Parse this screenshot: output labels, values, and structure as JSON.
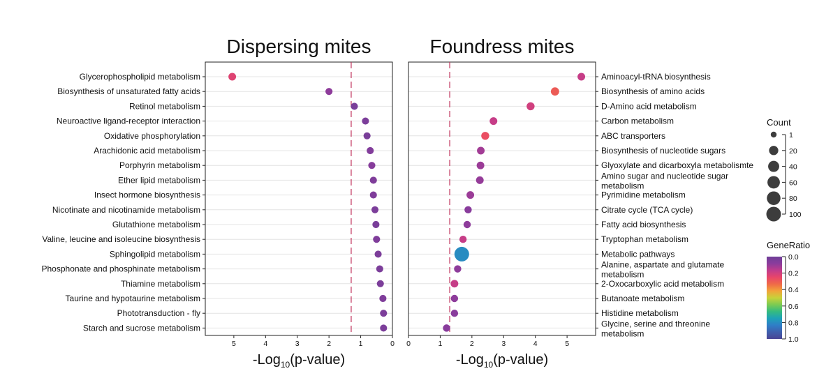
{
  "chart_data": [
    {
      "type": "scatter",
      "title": "Dispersing mites",
      "xlabel": {
        "prefix": "-Log",
        "subscript": "10",
        "suffix": "(p-value)"
      },
      "x_reversed": true,
      "xlim": [
        5.9,
        0
      ],
      "xticks": [
        "5",
        "4",
        "3",
        "2",
        "1",
        "0"
      ],
      "threshold": 1.3,
      "terms": [
        {
          "name": "Glycerophospholipid metabolism",
          "value": 5.05,
          "count": 8,
          "ratio": 0.23
        },
        {
          "name": "Biosynthesis of unsaturated fatty acids",
          "value": 2.0,
          "count": 5,
          "ratio": 0.09
        },
        {
          "name": "Retinol metabolism",
          "value": 1.2,
          "count": 5,
          "ratio": 0.03
        },
        {
          "name": "Neuroactive ligand-receptor interaction",
          "value": 0.85,
          "count": 5,
          "ratio": 0.04
        },
        {
          "name": "Oxidative phosphorylation",
          "value": 0.8,
          "count": 5,
          "ratio": 0.03
        },
        {
          "name": "Arachidonic acid metabolism",
          "value": 0.7,
          "count": 5,
          "ratio": 0.06
        },
        {
          "name": "Porphyrin metabolism",
          "value": 0.65,
          "count": 5,
          "ratio": 0.07
        },
        {
          "name": "Ether lipid metabolism",
          "value": 0.6,
          "count": 5,
          "ratio": 0.05
        },
        {
          "name": "Insect hormone biosynthesis",
          "value": 0.6,
          "count": 5,
          "ratio": 0.05
        },
        {
          "name": "Nicotinate and nicotinamide metabolism",
          "value": 0.55,
          "count": 5,
          "ratio": 0.04
        },
        {
          "name": "Glutathione metabolism",
          "value": 0.52,
          "count": 5,
          "ratio": 0.03
        },
        {
          "name": "Valine, leucine and isoleucine biosynthesis",
          "value": 0.5,
          "count": 5,
          "ratio": 0.05
        },
        {
          "name": "Sphingolipid metabolism",
          "value": 0.45,
          "count": 5,
          "ratio": 0.04
        },
        {
          "name": "Phosphonate and phosphinate metabolism",
          "value": 0.4,
          "count": 5,
          "ratio": 0.04
        },
        {
          "name": "Thiamine metabolism",
          "value": 0.38,
          "count": 5,
          "ratio": 0.04
        },
        {
          "name": "Taurine and hypotaurine metabolism",
          "value": 0.3,
          "count": 5,
          "ratio": 0.05
        },
        {
          "name": "Phototransduction - fly",
          "value": 0.28,
          "count": 5,
          "ratio": 0.04
        },
        {
          "name": "Starch and sucrose metabolism",
          "value": 0.28,
          "count": 5,
          "ratio": 0.04
        }
      ]
    },
    {
      "type": "scatter",
      "title": "Foundress mites",
      "xlabel": {
        "prefix": "-Log",
        "subscript": "10",
        "suffix": "(p-value)"
      },
      "x_reversed": false,
      "xlim": [
        0,
        5.9
      ],
      "xticks": [
        "0",
        "1",
        "2",
        "3",
        "4",
        "5"
      ],
      "threshold": 1.3,
      "terms": [
        {
          "name": "Aminoacyl-tRNA biosynthesis",
          "value": 5.45,
          "count": 8,
          "ratio": 0.18
        },
        {
          "name": "Biosynthesis of amino acids",
          "value": 4.62,
          "count": 12,
          "ratio": 0.3
        },
        {
          "name": "D-Amino acid metabolism",
          "value": 3.85,
          "count": 10,
          "ratio": 0.2
        },
        {
          "name": "Carbon metabolism",
          "value": 2.68,
          "count": 8,
          "ratio": 0.18
        },
        {
          "name": "ABC transporters",
          "value": 2.42,
          "count": 10,
          "ratio": 0.27
        },
        {
          "name": "Biosynthesis of nucleotide sugars",
          "value": 2.28,
          "count": 8,
          "ratio": 0.12
        },
        {
          "name": "Glyoxylate and dicarboxyla metabolismte",
          "value": 2.27,
          "count": 8,
          "ratio": 0.11
        },
        {
          "name": "Amino sugar and nucleotide sugar metabolism",
          "lines": [
            "Amino sugar and nucleotide sugar",
            "metabolism"
          ],
          "value": 2.25,
          "count": 8,
          "ratio": 0.1
        },
        {
          "name": "Pyrimidine metabolism",
          "value": 1.95,
          "count": 8,
          "ratio": 0.11
        },
        {
          "name": "Citrate cycle (TCA cycle)",
          "value": 1.88,
          "count": 6,
          "ratio": 0.08
        },
        {
          "name": "Fatty acid biosynthesis",
          "value": 1.85,
          "count": 6,
          "ratio": 0.09
        },
        {
          "name": "Tryptophan metabolism",
          "value": 1.72,
          "count": 6,
          "ratio": 0.18
        },
        {
          "name": "Metabolic pathways",
          "value": 1.68,
          "count": 100,
          "ratio": 0.8
        },
        {
          "name": "Alanine, aspartate and glutamate metabolism",
          "lines": [
            "Alanine, aspartate and glutamate",
            "metabolism"
          ],
          "value": 1.55,
          "count": 6,
          "ratio": 0.09
        },
        {
          "name": "2-Oxocarboxylic acid metabolism",
          "value": 1.45,
          "count": 8,
          "ratio": 0.18
        },
        {
          "name": "Butanoate metabolism",
          "value": 1.45,
          "count": 6,
          "ratio": 0.09
        },
        {
          "name": "Histidine metabolism",
          "value": 1.45,
          "count": 6,
          "ratio": 0.08
        },
        {
          "name": "Glycine, serine and threonine metabolism",
          "lines": [
            "Glycine, serine and threonine",
            "metabolism"
          ],
          "value": 1.2,
          "count": 6,
          "ratio": 0.08
        }
      ]
    }
  ],
  "legends": {
    "count": {
      "title": "Count",
      "levels": [
        1,
        20,
        40,
        60,
        80,
        100
      ],
      "labels": [
        "1",
        "20",
        "40",
        "60",
        "80",
        "100"
      ]
    },
    "gene_ratio": {
      "title": "GeneRatio",
      "range": [
        0.0,
        1.0
      ],
      "labels": [
        "0.0",
        "0.2",
        "0.4",
        "0.6",
        "0.8",
        "1.0"
      ],
      "colors": [
        "#6f3f98",
        "#8a3c9c",
        "#c03c8c",
        "#e8456a",
        "#ef6a48",
        "#f2a33a",
        "#c8d23a",
        "#7ccb52",
        "#34bb80",
        "#1ea2b7",
        "#2f7ec7",
        "#3f5fad",
        "#4a4494"
      ]
    }
  }
}
